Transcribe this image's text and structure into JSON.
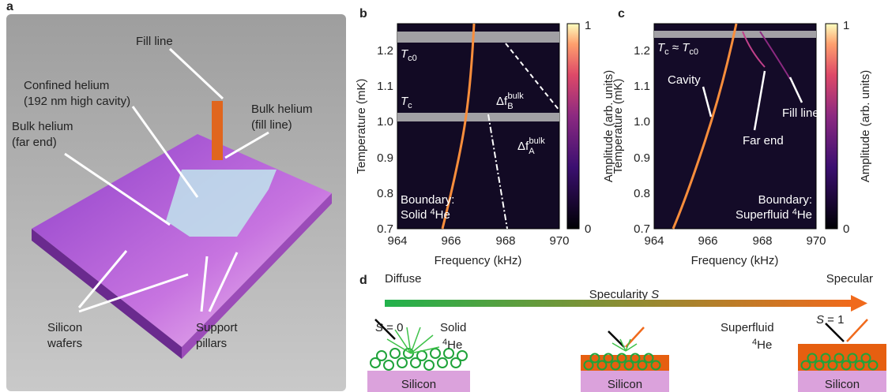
{
  "panel_a": {
    "letter": "a",
    "fill_line": "Fill line",
    "confined": [
      "Confined helium",
      "(192 nm high cavity)"
    ],
    "bulk_fill": [
      "Bulk helium",
      "(fill line)"
    ],
    "bulk_far": [
      "Bulk helium",
      "(far end)"
    ],
    "silicon_wafers": [
      "Silicon",
      "wafers"
    ],
    "support_pillars": [
      "Support",
      "pillars"
    ]
  },
  "panel_b": {
    "letter": "b",
    "y_label": "Temperature (mK)",
    "x_label": "Frequency (kHz)",
    "colorbar_label": "Amplitude (arb. units)",
    "colorbar_ticks": [
      "1",
      "0"
    ],
    "x_ticks": [
      "964",
      "966",
      "968",
      "970"
    ],
    "y_ticks": [
      "1.2",
      "1.1",
      "1.0",
      "0.9",
      "0.8",
      "0.7"
    ],
    "tc0": [
      "T",
      "c0"
    ],
    "tc": [
      "T",
      "c"
    ],
    "df_b": [
      "Δf",
      "B",
      "bulk"
    ],
    "df_a": [
      "Δf",
      "A",
      "bulk"
    ],
    "boundary": [
      "Boundary:",
      "Solid ",
      "4",
      "He"
    ]
  },
  "panel_c": {
    "letter": "c",
    "y_label": "Temperature (mK)",
    "x_label": "Frequency (kHz)",
    "colorbar_label": "Amplitude (arb. units)",
    "colorbar_ticks": [
      "1",
      "0"
    ],
    "x_ticks": [
      "964",
      "966",
      "968",
      "970"
    ],
    "y_ticks": [
      "1.2",
      "1.1",
      "1.0",
      "0.9",
      "0.8",
      "0.7"
    ],
    "tc": [
      "T",
      "c",
      " ≈ ",
      "T",
      "c0"
    ],
    "cavity": "Cavity",
    "far_end": "Far end",
    "fill_line": "Fill line",
    "boundary": [
      "Boundary:",
      "Superfluid ",
      "4",
      "He"
    ]
  },
  "panel_d": {
    "letter": "d",
    "diffuse": "Diffuse",
    "specularity": [
      "Specularity ",
      "S"
    ],
    "specular": "Specular",
    "s0": [
      "S",
      " = 0"
    ],
    "solid": [
      "Solid",
      "4",
      "He"
    ],
    "superfluid": [
      "Superfluid",
      "4",
      "He"
    ],
    "s1": [
      "S",
      " = 1"
    ],
    "silicon": [
      "Silicon",
      "Silicon",
      "Silicon"
    ]
  }
}
